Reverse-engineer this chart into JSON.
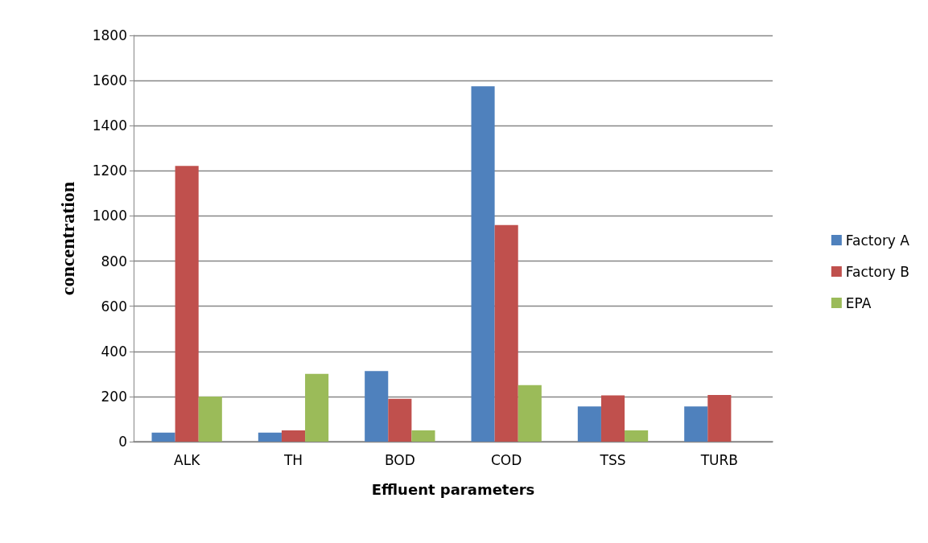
{
  "chart_data": {
    "type": "bar",
    "xlabel": "Effluent parameters",
    "ylabel": "concentration",
    "categories": [
      "ALK",
      "TH",
      "BOD",
      "COD",
      "TSS",
      "TURB"
    ],
    "series": [
      {
        "name": "Factory A",
        "color": "#4f81bd",
        "values": [
          40,
          40,
          313,
          1575,
          156,
          156
        ]
      },
      {
        "name": "Factory B",
        "color": "#c0504d",
        "values": [
          1222,
          50,
          190,
          960,
          205,
          207
        ]
      },
      {
        "name": "EPA",
        "color": "#9bbb59",
        "values": [
          200,
          300,
          50,
          250,
          50,
          null
        ]
      }
    ],
    "ylim": [
      0,
      1800
    ],
    "yticks": [
      0,
      200,
      400,
      600,
      800,
      1000,
      1200,
      1400,
      1600,
      1800
    ],
    "grid": "y",
    "legend": "right"
  }
}
